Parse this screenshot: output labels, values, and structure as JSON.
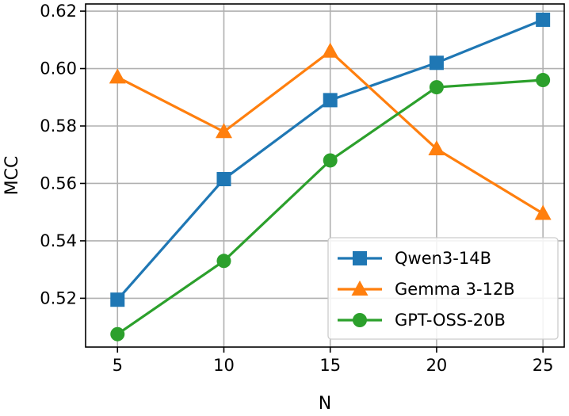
{
  "chart_data": {
    "type": "line",
    "title": "",
    "xlabel": "N",
    "ylabel": "MCC",
    "x": [
      5,
      10,
      15,
      20,
      25
    ],
    "xlim": [
      3.5,
      26
    ],
    "ylim": [
      0.503,
      0.6225
    ],
    "xticks": [
      5,
      10,
      15,
      20,
      25
    ],
    "xtick_labels": [
      "5",
      "10",
      "15",
      "20",
      "25"
    ],
    "yticks": [
      0.52,
      0.54,
      0.56,
      0.58,
      0.6,
      0.62
    ],
    "ytick_labels": [
      "0.52",
      "0.54",
      "0.56",
      "0.58",
      "0.60",
      "0.62"
    ],
    "grid": true,
    "legend_position": "lower-right",
    "series": [
      {
        "name": "Qwen3-14B",
        "color": "#1f77b4",
        "marker": "square",
        "values": [
          0.5195,
          0.5615,
          0.589,
          0.602,
          0.617
        ]
      },
      {
        "name": "Gemma 3-12B",
        "color": "#ff7f0e",
        "marker": "triangle",
        "values": [
          0.597,
          0.578,
          0.606,
          0.572,
          0.5495
        ]
      },
      {
        "name": "GPT-OSS-20B",
        "color": "#2ca02c",
        "marker": "circle",
        "values": [
          0.5075,
          0.533,
          0.568,
          0.5935,
          0.596
        ]
      }
    ]
  }
}
